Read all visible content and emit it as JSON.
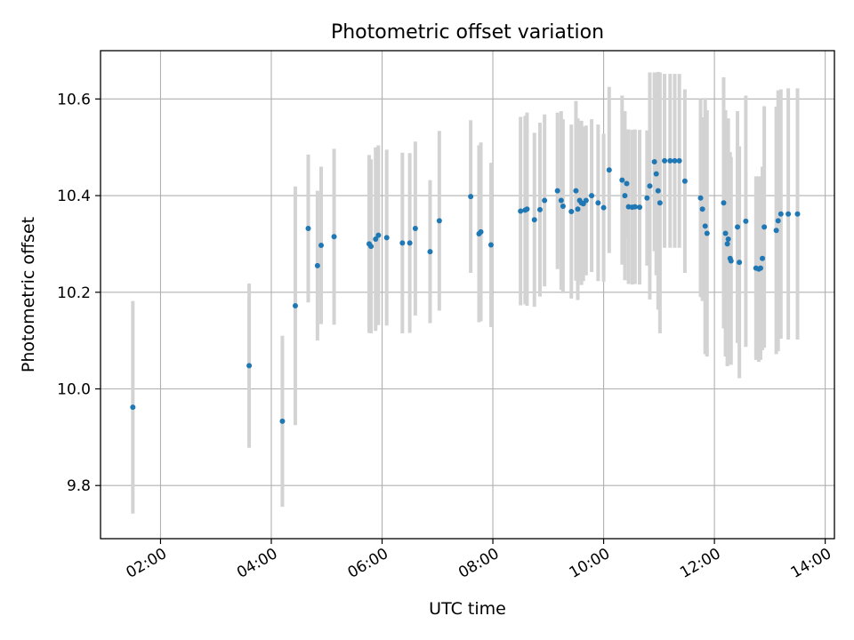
{
  "chart_data": {
    "type": "scatter",
    "title": "Photometric offset variation",
    "xlabel": "UTC time",
    "ylabel": "Photometric offset",
    "x_axis": "time",
    "xlim": [
      "00:55",
      "14:10"
    ],
    "ylim": [
      9.69,
      10.7
    ],
    "xticks": [
      "02:00",
      "04:00",
      "06:00",
      "08:00",
      "10:00",
      "12:00",
      "14:00"
    ],
    "yticks": [
      9.8,
      10.0,
      10.2,
      10.4,
      10.6
    ],
    "grid": true,
    "colors": {
      "points": "#1f77b4",
      "errorbars": "#d3d3d3",
      "grid": "#b0b0b0"
    },
    "series": [
      {
        "x": [
          "01:30",
          "03:36",
          "04:12",
          "04:26",
          "04:40",
          "04:50",
          "04:54",
          "05:08",
          "05:46",
          "05:48",
          "05:53",
          "05:56",
          "06:05",
          "06:22",
          "06:30",
          "06:36",
          "06:52",
          "07:02",
          "07:36",
          "07:45",
          "07:47",
          "07:58",
          "08:30",
          "08:35",
          "08:37",
          "08:45",
          "08:51",
          "08:56",
          "09:10",
          "09:14",
          "09:16",
          "09:25",
          "09:30",
          "09:32",
          "09:34",
          "09:36",
          "09:38",
          "09:41",
          "09:47",
          "09:54",
          "10:00",
          "10:06",
          "10:20",
          "10:23",
          "10:25",
          "10:27",
          "10:31",
          "10:34",
          "10:39",
          "10:47",
          "10:50",
          "10:55",
          "10:57",
          "10:59",
          "11:01",
          "11:06",
          "11:12",
          "11:17",
          "11:22",
          "11:28",
          "11:45",
          "11:47",
          "11:50",
          "11:52",
          "12:10",
          "12:12",
          "12:14",
          "12:15",
          "12:17",
          "12:18",
          "12:25",
          "12:27",
          "12:34",
          "12:45",
          "12:48",
          "12:50",
          "12:52",
          "12:54",
          "13:07",
          "13:09",
          "13:12",
          "13:20",
          "13:30"
        ],
        "y": [
          9.962,
          10.048,
          9.933,
          10.172,
          10.332,
          10.255,
          10.297,
          10.315,
          10.3,
          10.295,
          10.31,
          10.318,
          10.313,
          10.302,
          10.302,
          10.332,
          10.284,
          10.348,
          10.398,
          10.321,
          10.325,
          10.298,
          10.368,
          10.37,
          10.372,
          10.35,
          10.371,
          10.39,
          10.41,
          10.39,
          10.378,
          10.367,
          10.41,
          10.372,
          10.39,
          10.385,
          10.383,
          10.39,
          10.4,
          10.385,
          10.375,
          10.453,
          10.432,
          10.4,
          10.425,
          10.377,
          10.376,
          10.377,
          10.376,
          10.395,
          10.42,
          10.47,
          10.445,
          10.41,
          10.385,
          10.472,
          10.472,
          10.472,
          10.472,
          10.43,
          10.395,
          10.372,
          10.337,
          10.322,
          10.385,
          10.322,
          10.3,
          10.31,
          10.27,
          10.265,
          10.335,
          10.262,
          10.347,
          10.25,
          10.248,
          10.25,
          10.27,
          10.335,
          10.328,
          10.348,
          10.362,
          10.362,
          10.362
        ],
        "yerr": [
          0.22,
          0.17,
          0.177,
          0.247,
          0.153,
          0.155,
          0.163,
          0.182,
          0.184,
          0.18,
          0.19,
          0.186,
          0.182,
          0.187,
          0.186,
          0.18,
          0.148,
          0.186,
          0.158,
          0.183,
          0.185,
          0.17,
          0.195,
          0.195,
          0.2,
          0.18,
          0.18,
          0.178,
          0.162,
          0.185,
          0.18,
          0.18,
          0.186,
          0.188,
          0.165,
          0.17,
          0.16,
          0.155,
          0.158,
          0.162,
          0.153,
          0.172,
          0.175,
          0.175,
          0.112,
          0.16,
          0.16,
          0.16,
          0.16,
          0.14,
          0.235,
          0.185,
          0.21,
          0.246,
          0.27,
          0.18,
          0.18,
          0.18,
          0.18,
          0.19,
          0.205,
          0.19,
          0.265,
          0.255,
          0.26,
          0.255,
          0.253,
          0.25,
          0.22,
          0.215,
          0.24,
          0.24,
          0.26,
          0.19,
          0.192,
          0.19,
          0.19,
          0.25,
          0.256,
          0.27,
          0.258,
          0.26,
          0.26
        ]
      }
    ]
  }
}
